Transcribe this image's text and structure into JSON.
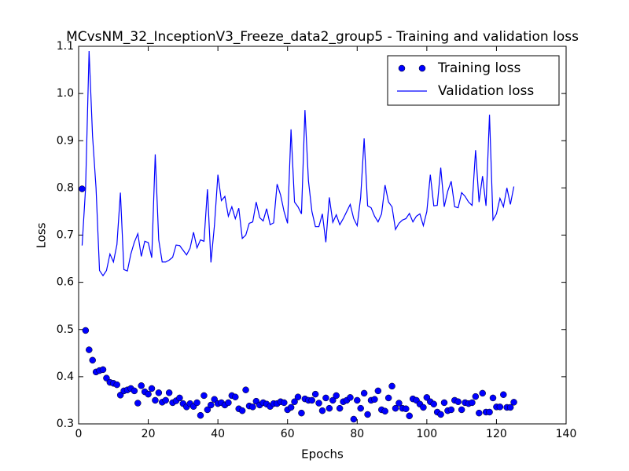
{
  "chart_data": {
    "type": "line",
    "title": "MCvsNM_32_InceptionV3_Freeze_data2_group5 - Training and validation loss",
    "x_label": "Epochs",
    "y_label": "Loss",
    "xlim": [
      0,
      140
    ],
    "xticks": [
      0,
      20,
      40,
      60,
      80,
      100,
      120,
      140
    ],
    "ylim": [
      0.3,
      1.1
    ],
    "yticks": [
      0.3,
      0.4,
      0.5,
      0.6,
      0.7,
      0.8,
      0.9,
      {
        "value": 1,
        "label": "1.0"
      },
      1.1
    ],
    "legend": "upper right",
    "x": [
      1,
      2,
      3,
      4,
      5,
      6,
      7,
      8,
      9,
      10,
      11,
      12,
      13,
      14,
      15,
      16,
      17,
      18,
      19,
      20,
      21,
      22,
      23,
      24,
      25,
      26,
      27,
      28,
      29,
      30,
      31,
      32,
      33,
      34,
      35,
      36,
      37,
      38,
      39,
      40,
      41,
      42,
      43,
      44,
      45,
      46,
      47,
      48,
      49,
      50,
      51,
      52,
      53,
      54,
      55,
      56,
      57,
      58,
      59,
      60,
      61,
      62,
      63,
      64,
      65,
      66,
      67,
      68,
      69,
      70,
      71,
      72,
      73,
      74,
      75,
      76,
      77,
      78,
      79,
      80,
      81,
      82,
      83,
      84,
      85,
      86,
      87,
      88,
      89,
      90,
      91,
      92,
      93,
      94,
      95,
      96,
      97,
      98,
      99,
      100,
      101,
      102,
      103,
      104,
      105,
      106,
      107,
      108,
      109,
      110,
      111,
      112,
      113,
      114,
      115,
      116,
      117,
      118,
      119,
      120,
      121,
      122,
      123,
      124,
      125
    ],
    "series": [
      {
        "name": "Training loss",
        "style": "markers",
        "color": "#0000ff",
        "values": [
          0.798,
          0.498,
          0.457,
          0.435,
          0.41,
          0.413,
          0.415,
          0.397,
          0.388,
          0.386,
          0.383,
          0.361,
          0.37,
          0.372,
          0.375,
          0.37,
          0.344,
          0.381,
          0.368,
          0.363,
          0.375,
          0.35,
          0.366,
          0.346,
          0.35,
          0.366,
          0.345,
          0.349,
          0.355,
          0.343,
          0.336,
          0.343,
          0.337,
          0.345,
          0.318,
          0.36,
          0.33,
          0.34,
          0.352,
          0.343,
          0.345,
          0.34,
          0.345,
          0.36,
          0.357,
          0.332,
          0.328,
          0.372,
          0.338,
          0.336,
          0.348,
          0.34,
          0.345,
          0.342,
          0.337,
          0.343,
          0.343,
          0.347,
          0.345,
          0.33,
          0.335,
          0.347,
          0.357,
          0.323,
          0.353,
          0.35,
          0.35,
          0.363,
          0.344,
          0.328,
          0.355,
          0.333,
          0.35,
          0.36,
          0.333,
          0.347,
          0.35,
          0.356,
          0.31,
          0.35,
          0.333,
          0.365,
          0.32,
          0.35,
          0.352,
          0.37,
          0.33,
          0.327,
          0.355,
          0.38,
          0.333,
          0.344,
          0.333,
          0.332,
          0.317,
          0.353,
          0.35,
          0.342,
          0.335,
          0.356,
          0.347,
          0.342,
          0.325,
          0.32,
          0.345,
          0.328,
          0.33,
          0.35,
          0.347,
          0.33,
          0.345,
          0.343,
          0.345,
          0.358,
          0.323,
          0.365,
          0.325,
          0.325,
          0.355,
          0.336,
          0.336,
          0.362,
          0.335,
          0.335,
          0.346
        ]
      },
      {
        "name": "Validation loss",
        "style": "line",
        "color": "#0000ff",
        "values": [
          0.678,
          0.8,
          1.09,
          0.91,
          0.8,
          0.625,
          0.614,
          0.625,
          0.66,
          0.643,
          0.68,
          0.79,
          0.627,
          0.624,
          0.66,
          0.685,
          0.703,
          0.655,
          0.687,
          0.684,
          0.652,
          0.871,
          0.69,
          0.643,
          0.643,
          0.647,
          0.653,
          0.679,
          0.678,
          0.668,
          0.658,
          0.672,
          0.706,
          0.673,
          0.69,
          0.687,
          0.797,
          0.642,
          0.72,
          0.828,
          0.773,
          0.782,
          0.74,
          0.76,
          0.735,
          0.757,
          0.693,
          0.7,
          0.725,
          0.728,
          0.77,
          0.737,
          0.73,
          0.756,
          0.722,
          0.726,
          0.808,
          0.785,
          0.75,
          0.725,
          0.924,
          0.77,
          0.76,
          0.745,
          0.965,
          0.815,
          0.75,
          0.718,
          0.718,
          0.745,
          0.685,
          0.78,
          0.727,
          0.743,
          0.722,
          0.735,
          0.75,
          0.765,
          0.735,
          0.72,
          0.78,
          0.905,
          0.762,
          0.758,
          0.74,
          0.728,
          0.745,
          0.806,
          0.77,
          0.76,
          0.712,
          0.725,
          0.732,
          0.735,
          0.746,
          0.728,
          0.74,
          0.745,
          0.72,
          0.75,
          0.828,
          0.762,
          0.763,
          0.843,
          0.76,
          0.793,
          0.814,
          0.76,
          0.758,
          0.79,
          0.782,
          0.77,
          0.763,
          0.88,
          0.77,
          0.825,
          0.762,
          0.955,
          0.732,
          0.745,
          0.778,
          0.76,
          0.8,
          0.765,
          0.803
        ]
      }
    ]
  }
}
